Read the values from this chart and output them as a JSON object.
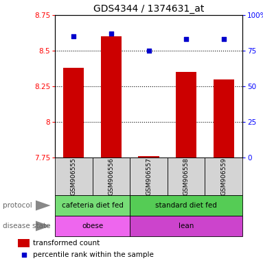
{
  "title": "GDS4344 / 1374631_at",
  "samples": [
    "GSM906555",
    "GSM906556",
    "GSM906557",
    "GSM906558",
    "GSM906559"
  ],
  "transformed_counts": [
    8.38,
    8.6,
    7.76,
    8.35,
    8.3
  ],
  "percentile_ranks": [
    85,
    87,
    75,
    83,
    83
  ],
  "ylim_left": [
    7.75,
    8.75
  ],
  "ylim_right": [
    0,
    100
  ],
  "yticks_left": [
    7.75,
    8.0,
    8.25,
    8.5,
    8.75
  ],
  "yticks_right": [
    0,
    25,
    50,
    75,
    100
  ],
  "ytick_labels_left": [
    "7.75",
    "8",
    "8.25",
    "8.5",
    "8.75"
  ],
  "ytick_labels_right": [
    "0",
    "25",
    "50",
    "75",
    "100%"
  ],
  "bar_color": "#cc0000",
  "dot_color": "#0000cc",
  "protocol_labels": [
    "cafeteria diet fed",
    "standard diet fed"
  ],
  "protocol_colors": [
    "#77dd77",
    "#55cc55"
  ],
  "protocol_xranges": [
    [
      0,
      2
    ],
    [
      2,
      5
    ]
  ],
  "disease_labels": [
    "obese",
    "lean"
  ],
  "disease_colors": [
    "#ee66ee",
    "#cc44cc"
  ],
  "disease_xranges": [
    [
      0,
      2
    ],
    [
      2,
      5
    ]
  ],
  "legend_bar_label": "transformed count",
  "legend_dot_label": "percentile rank within the sample",
  "background_color": "#ffffff",
  "plot_bg_color": "#ffffff",
  "title_fontsize": 10,
  "tick_fontsize": 7.5,
  "sample_fontsize": 6.5,
  "row_fontsize": 7.5,
  "legend_fontsize": 7.5
}
